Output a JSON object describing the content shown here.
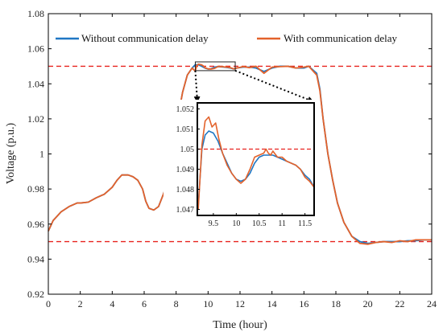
{
  "chart_data": [
    {
      "type": "line",
      "xlabel": "Time (hour)",
      "ylabel": "Voltage  (p.u.)",
      "xlim": [
        0,
        24
      ],
      "ylim": [
        0.92,
        1.08
      ],
      "xticks": [
        0,
        2,
        4,
        6,
        8,
        10,
        12,
        14,
        16,
        18,
        20,
        22,
        24
      ],
      "yticks": [
        0.92,
        0.94,
        0.96,
        0.98,
        1,
        1.02,
        1.04,
        1.06,
        1.08
      ],
      "ytick_labels": [
        "0.92",
        "0.94",
        "0.96",
        "0.98",
        "1",
        "1.02",
        "1.04",
        "1.06",
        "1.08"
      ],
      "grid": false,
      "legend": "top",
      "reference_lines": [
        {
          "y": 1.05,
          "style": "dashed",
          "color": "#e8231f"
        },
        {
          "y": 0.95,
          "style": "dashed",
          "color": "#e8231f"
        }
      ],
      "highlight_box": {
        "x": [
          9.2,
          11.7
        ],
        "y": [
          1.0475,
          1.0525
        ]
      },
      "series": [
        {
          "name": "Without communication delay",
          "color": "#1f77c4",
          "x": [
            0,
            0.3,
            0.8,
            1.3,
            1.8,
            2.0,
            2.5,
            3.0,
            3.5,
            4.0,
            4.3,
            4.6,
            5.0,
            5.3,
            5.6,
            5.9,
            6.1,
            6.3,
            6.6,
            6.9,
            7.2,
            7.5,
            7.8,
            8.1,
            8.4,
            8.7,
            9.0,
            9.2,
            9.4,
            9.6,
            9.8,
            10.0,
            10.2,
            10.4,
            10.6,
            10.8,
            11.0,
            11.2,
            11.4,
            11.6,
            11.8,
            12.2,
            12.6,
            13.0,
            13.5,
            14.0,
            14.5,
            15.0,
            15.5,
            16.0,
            16.3,
            16.8,
            17.0,
            17.2,
            17.5,
            17.8,
            18.1,
            18.5,
            19.0,
            19.5,
            20.0,
            20.5,
            21.0,
            21.5,
            22.0,
            22.5,
            23.0,
            23.5,
            24.0
          ],
          "y": [
            0.956,
            0.962,
            0.967,
            0.97,
            0.972,
            0.972,
            0.9725,
            0.975,
            0.977,
            0.981,
            0.985,
            0.988,
            0.988,
            0.987,
            0.985,
            0.98,
            0.973,
            0.969,
            0.968,
            0.97,
            0.977,
            0.985,
            1.0,
            1.02,
            1.035,
            1.045,
            1.049,
            1.0509,
            1.0508,
            1.05,
            1.049,
            1.0484,
            1.0486,
            1.0495,
            1.0498,
            1.0497,
            1.0495,
            1.0493,
            1.049,
            1.0485,
            1.049,
            1.0495,
            1.0495,
            1.049,
            1.047,
            1.049,
            1.05,
            1.05,
            1.049,
            1.049,
            1.05,
            1.046,
            1.037,
            1.02,
            1.0,
            0.985,
            0.972,
            0.961,
            0.953,
            0.95,
            0.949,
            0.9495,
            0.95,
            0.95,
            0.95,
            0.9505,
            0.9505,
            0.951,
            0.951
          ]
        },
        {
          "name": "With communication delay",
          "color": "#e3622b",
          "x": [
            0,
            0.3,
            0.8,
            1.3,
            1.8,
            2.0,
            2.5,
            3.0,
            3.5,
            4.0,
            4.3,
            4.6,
            5.0,
            5.3,
            5.6,
            5.9,
            6.1,
            6.3,
            6.6,
            6.9,
            7.2,
            7.5,
            7.8,
            8.1,
            8.4,
            8.7,
            9.0,
            9.2,
            9.3,
            9.4,
            9.5,
            9.6,
            9.7,
            9.8,
            10.0,
            10.2,
            10.4,
            10.6,
            10.7,
            10.8,
            10.9,
            11.0,
            11.2,
            11.4,
            11.6,
            11.8,
            12.2,
            12.6,
            13.0,
            13.5,
            14.0,
            14.5,
            15.0,
            15.5,
            16.0,
            16.3,
            16.8,
            17.0,
            17.2,
            17.5,
            17.8,
            18.1,
            18.5,
            19.0,
            19.5,
            20.0,
            20.5,
            21.0,
            21.5,
            22.0,
            22.5,
            23.0,
            23.5,
            24.0
          ],
          "y": [
            0.956,
            0.962,
            0.967,
            0.97,
            0.972,
            0.972,
            0.9725,
            0.975,
            0.977,
            0.981,
            0.985,
            0.988,
            0.988,
            0.987,
            0.985,
            0.98,
            0.973,
            0.969,
            0.968,
            0.97,
            0.977,
            0.985,
            1.0,
            1.02,
            1.035,
            1.045,
            1.049,
            1.0472,
            1.0505,
            1.0512,
            1.051,
            1.0508,
            1.0502,
            1.0492,
            1.0485,
            1.0484,
            1.0488,
            1.0497,
            1.05,
            1.0496,
            1.0499,
            1.0496,
            1.0495,
            1.0492,
            1.0485,
            1.049,
            1.0498,
            1.0492,
            1.05,
            1.046,
            1.0495,
            1.0498,
            1.05,
            1.049,
            1.0495,
            1.05,
            1.045,
            1.036,
            1.02,
            1.0,
            0.985,
            0.972,
            0.961,
            0.953,
            0.949,
            0.9485,
            0.9495,
            0.95,
            0.9495,
            0.9505,
            0.95,
            0.951,
            0.951,
            0.951
          ]
        }
      ]
    },
    {
      "type": "line",
      "role": "inset",
      "xlim": [
        9.15,
        11.7
      ],
      "ylim": [
        1.0467,
        1.0523
      ],
      "xticks": [
        9.5,
        10,
        10.5,
        11,
        11.5
      ],
      "xtick_labels": [
        "9.5",
        "10",
        "10.5",
        "11",
        "11.5"
      ],
      "yticks": [
        1.047,
        1.048,
        1.049,
        1.05,
        1.051,
        1.052
      ],
      "ytick_labels": [
        "1.047",
        "1.048",
        "1.049",
        "1.05",
        "1.051",
        "1.052"
      ],
      "reference_lines": [
        {
          "y": 1.05,
          "style": "dashed",
          "color": "#e8231f"
        }
      ],
      "series": [
        {
          "name": "Without communication delay",
          "color": "#1f77c4",
          "x": [
            9.17,
            9.25,
            9.32,
            9.4,
            9.5,
            9.6,
            9.7,
            9.8,
            9.9,
            10.0,
            10.1,
            10.2,
            10.3,
            10.4,
            10.5,
            10.6,
            10.7,
            10.8,
            10.9,
            11.0,
            11.1,
            11.2,
            11.3,
            11.4,
            11.5,
            11.6,
            11.7
          ],
          "y": [
            1.0472,
            1.05,
            1.0507,
            1.0509,
            1.0508,
            1.0504,
            1.0498,
            1.0493,
            1.0488,
            1.0485,
            1.0484,
            1.0485,
            1.0488,
            1.0493,
            1.0496,
            1.0497,
            1.0497,
            1.0497,
            1.0496,
            1.0495,
            1.0494,
            1.0493,
            1.0492,
            1.049,
            1.0487,
            1.0485,
            1.0481
          ]
        },
        {
          "name": "With communication delay",
          "color": "#e3622b",
          "x": [
            9.17,
            9.25,
            9.32,
            9.4,
            9.47,
            9.55,
            9.62,
            9.7,
            9.8,
            9.9,
            10.0,
            10.1,
            10.2,
            10.3,
            10.4,
            10.5,
            10.6,
            10.65,
            10.7,
            10.75,
            10.8,
            10.9,
            11.0,
            11.1,
            11.2,
            11.3,
            11.4,
            11.5,
            11.6,
            11.7
          ],
          "y": [
            1.047,
            1.0502,
            1.0514,
            1.0516,
            1.0511,
            1.0513,
            1.0505,
            1.0498,
            1.0492,
            1.0488,
            1.0485,
            1.0483,
            1.0485,
            1.049,
            1.0496,
            1.0497,
            1.0498,
            1.05,
            1.0498,
            1.0497,
            1.0499,
            1.0496,
            1.0496,
            1.0494,
            1.0493,
            1.0492,
            1.049,
            1.0486,
            1.0484,
            1.0481
          ]
        }
      ]
    }
  ]
}
